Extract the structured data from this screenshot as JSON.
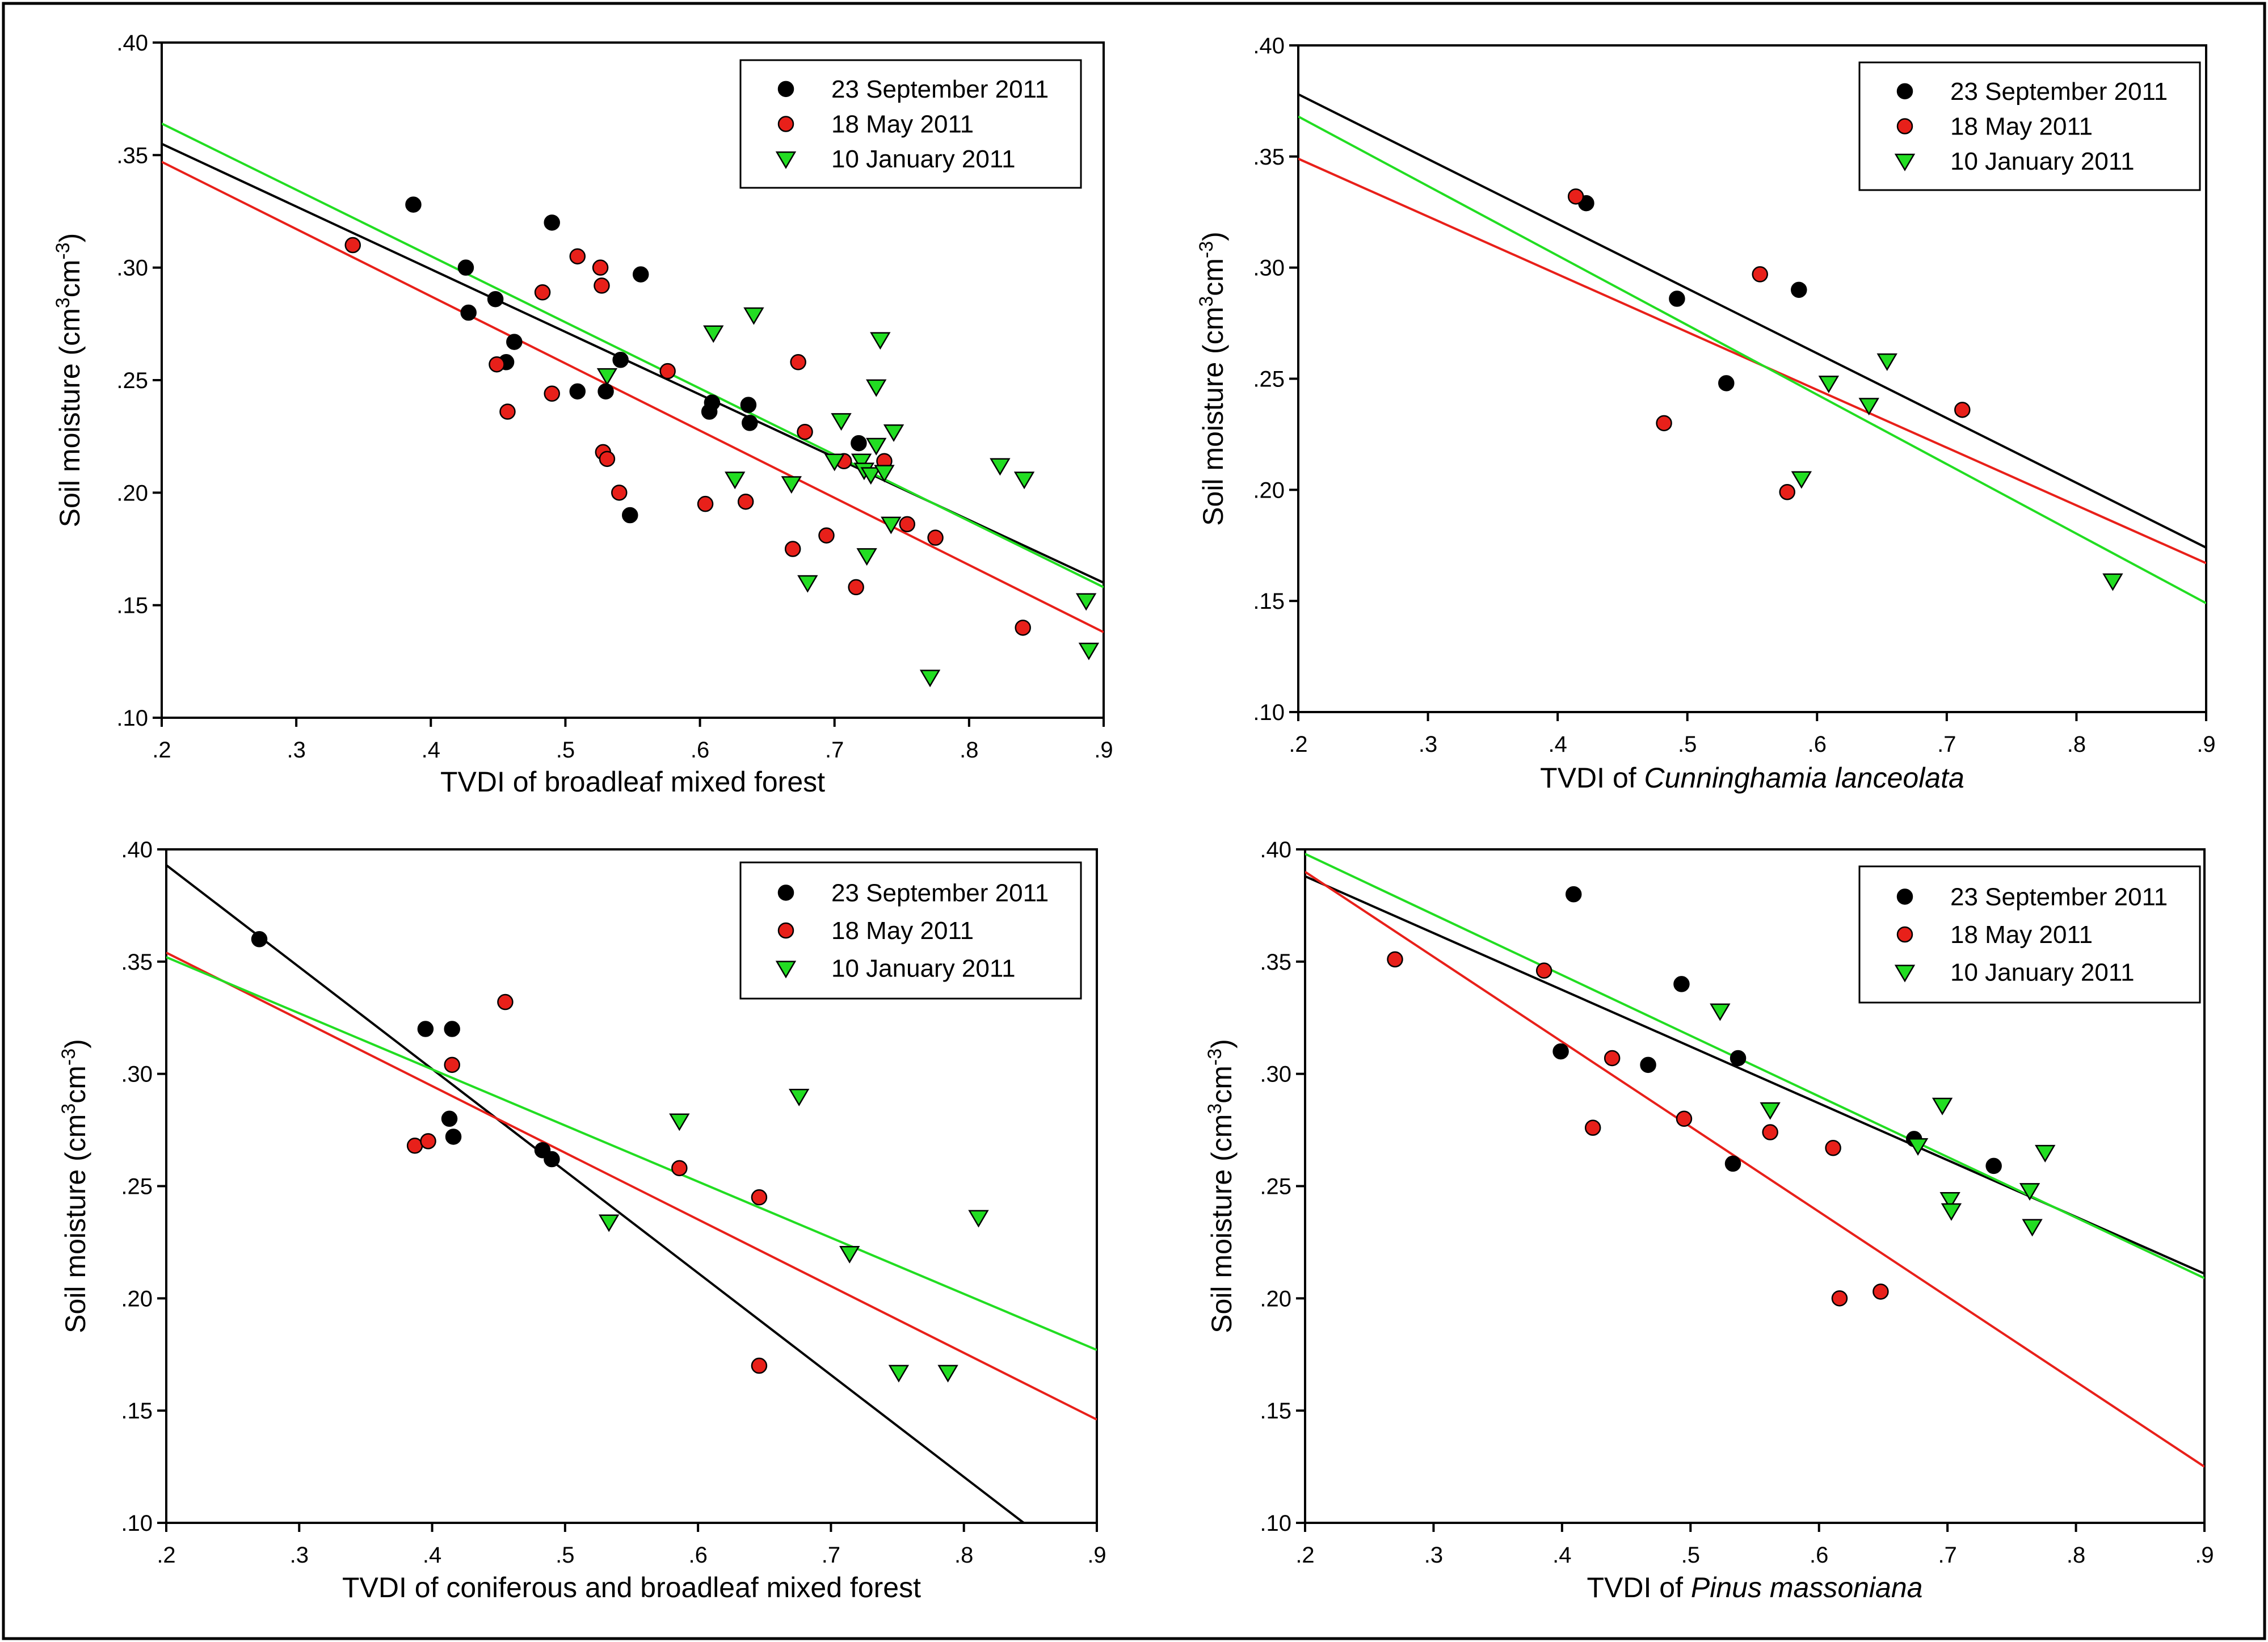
{
  "figure": {
    "legend_labels": [
      "23 September 2011",
      "18 May 2011",
      "10 January 2011"
    ]
  },
  "chart_data": [
    {
      "type": "scatter",
      "title": "",
      "xlabel": "TVDI of broadleaf mixed forest",
      "xlabel_parts": [
        {
          "text": "TVDI of broadleaf mixed forest",
          "italic": false
        }
      ],
      "ylabel": "Soil moisture (cm3cm-3)",
      "xlim": [
        0.2,
        0.9
      ],
      "ylim": [
        0.1,
        0.4
      ],
      "xticks": [
        0.2,
        0.3,
        0.4,
        0.5,
        0.6,
        0.7,
        0.8,
        0.9
      ],
      "xtick_labels": [
        ".2",
        ".3",
        ".4",
        ".5",
        ".6",
        ".7",
        ".8",
        ".9"
      ],
      "yticks": [
        0.1,
        0.15,
        0.2,
        0.25,
        0.3,
        0.35,
        0.4
      ],
      "ytick_labels": [
        ".10",
        ".15",
        ".20",
        ".25",
        ".30",
        ".35",
        ".40"
      ],
      "series": [
        {
          "name": "23 September 2011",
          "marker": "circle",
          "color": "#000000",
          "points": [
            [
              0.387,
              0.328
            ],
            [
              0.426,
              0.3
            ],
            [
              0.428,
              0.28
            ],
            [
              0.448,
              0.286
            ],
            [
              0.456,
              0.258
            ],
            [
              0.462,
              0.267
            ],
            [
              0.49,
              0.32
            ],
            [
              0.509,
              0.245
            ],
            [
              0.53,
              0.245
            ],
            [
              0.541,
              0.259
            ],
            [
              0.548,
              0.19
            ],
            [
              0.556,
              0.297
            ],
            [
              0.607,
              0.236
            ],
            [
              0.609,
              0.24
            ],
            [
              0.636,
              0.239
            ],
            [
              0.637,
              0.231
            ],
            [
              0.718,
              0.222
            ]
          ],
          "line": [
            [
              0.2,
              0.355
            ],
            [
              0.9,
              0.16
            ]
          ]
        },
        {
          "name": "18 May 2011",
          "marker": "circle",
          "color": "#e8201a",
          "points": [
            [
              0.342,
              0.31
            ],
            [
              0.449,
              0.257
            ],
            [
              0.457,
              0.236
            ],
            [
              0.483,
              0.289
            ],
            [
              0.49,
              0.244
            ],
            [
              0.509,
              0.305
            ],
            [
              0.526,
              0.3
            ],
            [
              0.527,
              0.292
            ],
            [
              0.528,
              0.218
            ],
            [
              0.531,
              0.215
            ],
            [
              0.54,
              0.2
            ],
            [
              0.576,
              0.254
            ],
            [
              0.604,
              0.195
            ],
            [
              0.634,
              0.196
            ],
            [
              0.669,
              0.175
            ],
            [
              0.673,
              0.258
            ],
            [
              0.678,
              0.227
            ],
            [
              0.694,
              0.181
            ],
            [
              0.707,
              0.214
            ],
            [
              0.716,
              0.158
            ],
            [
              0.737,
              0.214
            ],
            [
              0.754,
              0.186
            ],
            [
              0.775,
              0.18
            ],
            [
              0.84,
              0.14
            ]
          ],
          "line": [
            [
              0.2,
              0.347
            ],
            [
              0.9,
              0.138
            ]
          ]
        },
        {
          "name": "10 January 2011",
          "marker": "triangle-down",
          "color": "#22dd22",
          "points": [
            [
              0.531,
              0.252
            ],
            [
              0.61,
              0.271
            ],
            [
              0.626,
              0.206
            ],
            [
              0.64,
              0.279
            ],
            [
              0.668,
              0.204
            ],
            [
              0.68,
              0.16
            ],
            [
              0.7,
              0.214
            ],
            [
              0.705,
              0.232
            ],
            [
              0.72,
              0.214
            ],
            [
              0.722,
              0.21
            ],
            [
              0.724,
              0.172
            ],
            [
              0.727,
              0.208
            ],
            [
              0.731,
              0.221
            ],
            [
              0.731,
              0.247
            ],
            [
              0.734,
              0.268
            ],
            [
              0.737,
              0.209
            ],
            [
              0.742,
              0.186
            ],
            [
              0.744,
              0.227
            ],
            [
              0.771,
              0.118
            ],
            [
              0.823,
              0.212
            ],
            [
              0.841,
              0.206
            ],
            [
              0.887,
              0.152
            ],
            [
              0.889,
              0.13
            ]
          ],
          "line": [
            [
              0.2,
              0.364
            ],
            [
              0.9,
              0.158
            ]
          ]
        }
      ]
    },
    {
      "type": "scatter",
      "title": "",
      "xlabel": "TVDI of Cunninghamia lanceolata",
      "xlabel_parts": [
        {
          "text": "TVDI of ",
          "italic": false
        },
        {
          "text": "Cunninghamia lanceolata",
          "italic": true
        }
      ],
      "ylabel": "Soil moisture (cm3cm-3)",
      "xlim": [
        0.2,
        0.9
      ],
      "ylim": [
        0.1,
        0.4
      ],
      "xticks": [
        0.2,
        0.3,
        0.4,
        0.5,
        0.6,
        0.7,
        0.8,
        0.9
      ],
      "xtick_labels": [
        ".2",
        ".3",
        ".4",
        ".5",
        ".6",
        ".7",
        ".8",
        ".9"
      ],
      "yticks": [
        0.1,
        0.15,
        0.2,
        0.25,
        0.3,
        0.35,
        0.4
      ],
      "ytick_labels": [
        ".10",
        ".15",
        ".20",
        ".25",
        ".30",
        ".35",
        ".40"
      ],
      "series": [
        {
          "name": "23 September 2011",
          "marker": "circle",
          "color": "#000000",
          "points": [
            [
              0.422,
              0.329
            ],
            [
              0.492,
              0.286
            ],
            [
              0.53,
              0.248
            ],
            [
              0.586,
              0.29
            ]
          ],
          "line": [
            [
              0.2,
              0.378
            ],
            [
              0.9,
              0.174
            ]
          ]
        },
        {
          "name": "18 May 2011",
          "marker": "circle",
          "color": "#e8201a",
          "points": [
            [
              0.414,
              0.332
            ],
            [
              0.482,
              0.23
            ],
            [
              0.556,
              0.297
            ],
            [
              0.577,
              0.199
            ],
            [
              0.712,
              0.236
            ]
          ],
          "line": [
            [
              0.2,
              0.349
            ],
            [
              0.9,
              0.167
            ]
          ]
        },
        {
          "name": "10 January 2011",
          "marker": "triangle-down",
          "color": "#22dd22",
          "points": [
            [
              0.588,
              0.205
            ],
            [
              0.609,
              0.248
            ],
            [
              0.64,
              0.238
            ],
            [
              0.654,
              0.258
            ],
            [
              0.828,
              0.159
            ]
          ],
          "line": [
            [
              0.2,
              0.368
            ],
            [
              0.9,
              0.149
            ]
          ]
        }
      ]
    },
    {
      "type": "scatter",
      "title": "",
      "xlabel": "TVDI of coniferous and broadleaf mixed forest",
      "xlabel_parts": [
        {
          "text": "TVDI of coniferous and broadleaf mixed forest",
          "italic": false
        }
      ],
      "ylabel": "Soil moisture (cm3cm-3)",
      "xlim": [
        0.2,
        0.9
      ],
      "ylim": [
        0.1,
        0.4
      ],
      "xticks": [
        0.2,
        0.3,
        0.4,
        0.5,
        0.6,
        0.7,
        0.8,
        0.9
      ],
      "xtick_labels": [
        ".2",
        ".3",
        ".4",
        ".5",
        ".6",
        ".7",
        ".8",
        ".9"
      ],
      "yticks": [
        0.1,
        0.15,
        0.2,
        0.25,
        0.3,
        0.35,
        0.4
      ],
      "ytick_labels": [
        ".10",
        ".15",
        ".20",
        ".25",
        ".30",
        ".35",
        ".40"
      ],
      "series": [
        {
          "name": "23 September 2011",
          "marker": "circle",
          "color": "#000000",
          "points": [
            [
              0.27,
              0.36
            ],
            [
              0.395,
              0.32
            ],
            [
              0.413,
              0.28
            ],
            [
              0.415,
              0.32
            ],
            [
              0.416,
              0.272
            ],
            [
              0.483,
              0.266
            ],
            [
              0.49,
              0.262
            ]
          ],
          "line": [
            [
              0.2,
              0.393
            ],
            [
              0.845,
              0.1
            ]
          ]
        },
        {
          "name": "18 May 2011",
          "marker": "circle",
          "color": "#e8201a",
          "points": [
            [
              0.387,
              0.268
            ],
            [
              0.397,
              0.27
            ],
            [
              0.415,
              0.304
            ],
            [
              0.455,
              0.332
            ],
            [
              0.586,
              0.258
            ],
            [
              0.646,
              0.245
            ],
            [
              0.646,
              0.17
            ]
          ],
          "line": [
            [
              0.2,
              0.354
            ],
            [
              0.9,
              0.146
            ]
          ]
        },
        {
          "name": "10 January 2011",
          "marker": "triangle-down",
          "color": "#22dd22",
          "points": [
            [
              0.533,
              0.234
            ],
            [
              0.586,
              0.279
            ],
            [
              0.676,
              0.29
            ],
            [
              0.714,
              0.22
            ],
            [
              0.751,
              0.167
            ],
            [
              0.788,
              0.167
            ],
            [
              0.811,
              0.236
            ]
          ],
          "line": [
            [
              0.2,
              0.352
            ],
            [
              0.9,
              0.177
            ]
          ]
        }
      ]
    },
    {
      "type": "scatter",
      "title": "",
      "xlabel": "TVDI of Pinus massoniana",
      "xlabel_parts": [
        {
          "text": "TVDI of ",
          "italic": false
        },
        {
          "text": "Pinus massoniana",
          "italic": true
        }
      ],
      "ylabel": "Soil moisture (cm3cm-3)",
      "xlim": [
        0.2,
        0.9
      ],
      "ylim": [
        0.1,
        0.4
      ],
      "xticks": [
        0.2,
        0.3,
        0.4,
        0.5,
        0.6,
        0.7,
        0.8,
        0.9
      ],
      "xtick_labels": [
        ".2",
        ".3",
        ".4",
        ".5",
        ".6",
        ".7",
        ".8",
        ".9"
      ],
      "yticks": [
        0.1,
        0.15,
        0.2,
        0.25,
        0.3,
        0.35,
        0.4
      ],
      "ytick_labels": [
        ".10",
        ".15",
        ".20",
        ".25",
        ".30",
        ".35",
        ".40"
      ],
      "series": [
        {
          "name": "23 September 2011",
          "marker": "circle",
          "color": "#000000",
          "points": [
            [
              0.399,
              0.31
            ],
            [
              0.409,
              0.38
            ],
            [
              0.467,
              0.304
            ],
            [
              0.493,
              0.34
            ],
            [
              0.533,
              0.26
            ],
            [
              0.537,
              0.307
            ],
            [
              0.674,
              0.271
            ],
            [
              0.736,
              0.259
            ]
          ],
          "line": [
            [
              0.2,
              0.388
            ],
            [
              0.9,
              0.211
            ]
          ]
        },
        {
          "name": "18 May 2011",
          "marker": "circle",
          "color": "#e8201a",
          "points": [
            [
              0.27,
              0.351
            ],
            [
              0.386,
              0.346
            ],
            [
              0.424,
              0.276
            ],
            [
              0.439,
              0.307
            ],
            [
              0.495,
              0.28
            ],
            [
              0.562,
              0.274
            ],
            [
              0.611,
              0.267
            ],
            [
              0.616,
              0.2
            ],
            [
              0.648,
              0.203
            ]
          ],
          "line": [
            [
              0.2,
              0.39
            ],
            [
              0.9,
              0.125
            ]
          ]
        },
        {
          "name": "10 January 2011",
          "marker": "triangle-down",
          "color": "#22dd22",
          "points": [
            [
              0.523,
              0.328
            ],
            [
              0.562,
              0.284
            ],
            [
              0.677,
              0.268
            ],
            [
              0.696,
              0.286
            ],
            [
              0.702,
              0.244
            ],
            [
              0.703,
              0.239
            ],
            [
              0.764,
              0.248
            ],
            [
              0.766,
              0.232
            ],
            [
              0.776,
              0.265
            ]
          ],
          "line": [
            [
              0.2,
              0.398
            ],
            [
              0.9,
              0.209
            ]
          ]
        }
      ]
    }
  ]
}
